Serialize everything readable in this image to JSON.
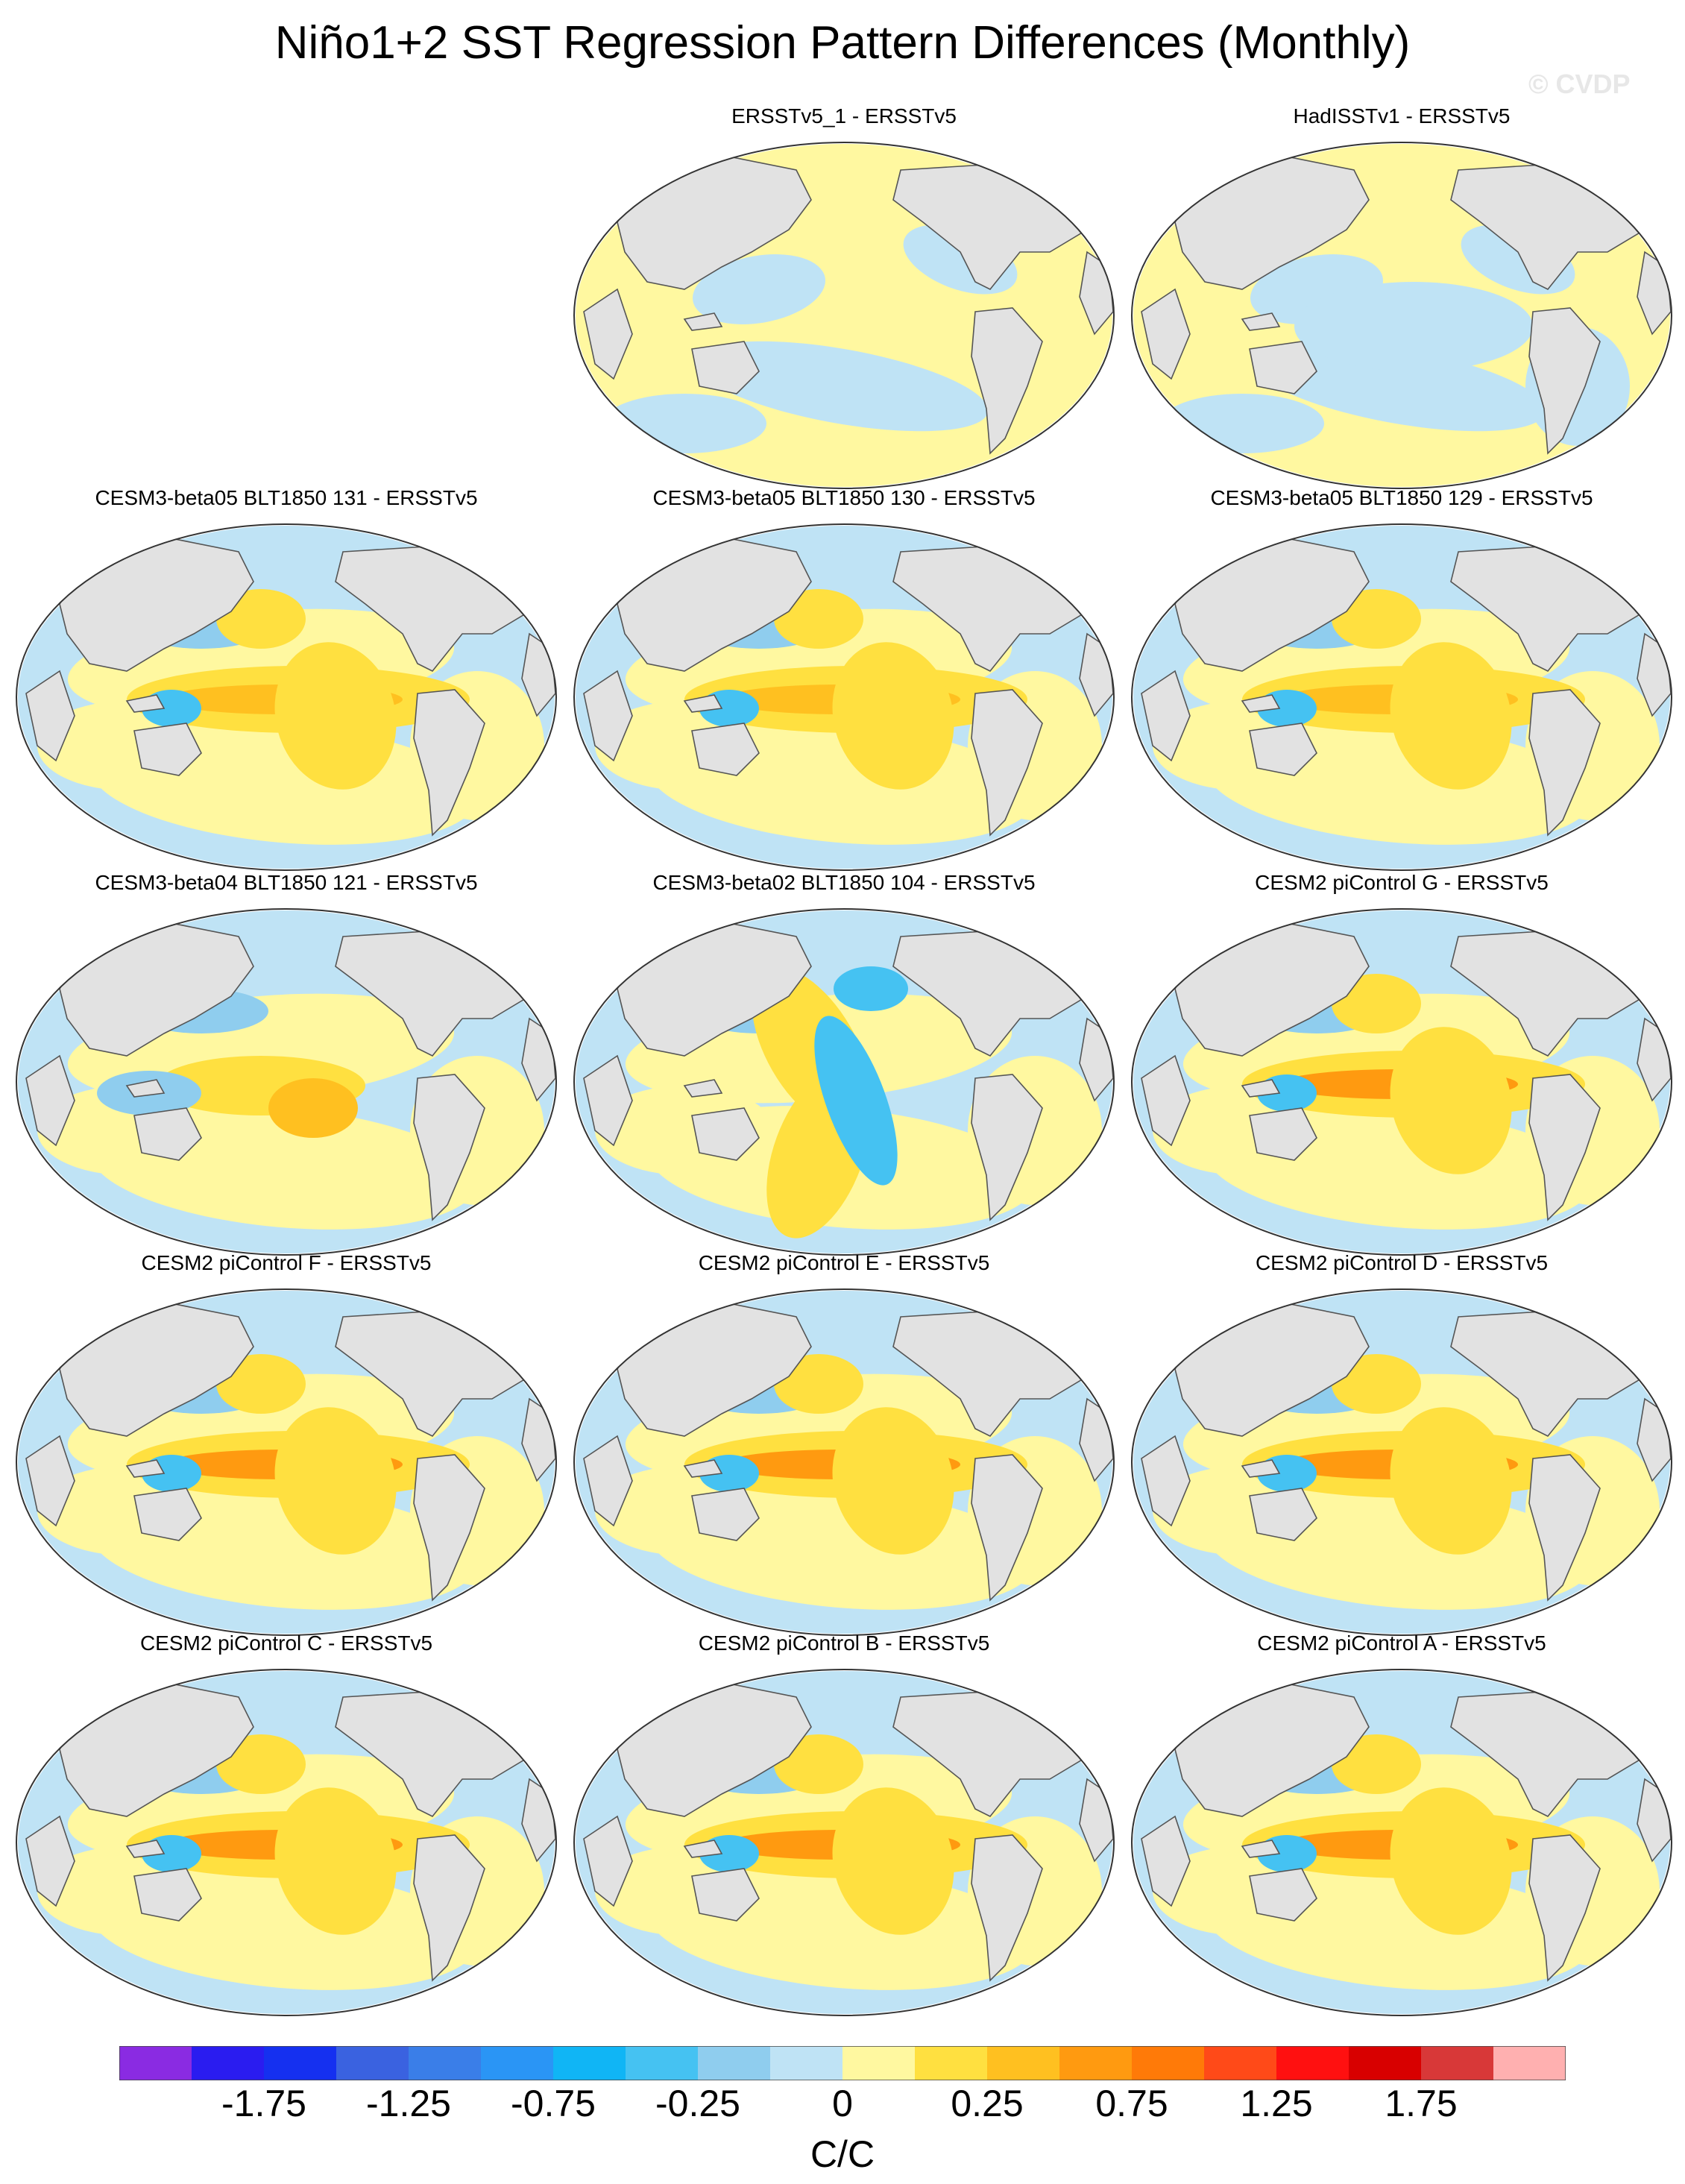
{
  "title": "Niño1+2 SST Regression Pattern Differences (Monthly)",
  "watermark": "© CVDP",
  "panels": [
    {
      "title": "ERSSTv5_1 - ERSSTv5",
      "pattern": "obs-weak"
    },
    {
      "title": "HadISSTv1 - ERSSTv5",
      "pattern": "obs-mixed"
    },
    {
      "title": "CESM3-beta05 BLT1850 131 - ERSSTv5",
      "pattern": "model-tongue"
    },
    {
      "title": "CESM3-beta05 BLT1850 130 - ERSSTv5",
      "pattern": "model-tongue"
    },
    {
      "title": "CESM3-beta05 BLT1850 129 - ERSSTv5",
      "pattern": "model-tongue"
    },
    {
      "title": "CESM3-beta04 BLT1850 121 - ERSSTv5",
      "pattern": "model-mixed"
    },
    {
      "title": "CESM3-beta02 BLT1850 104 - ERSSTv5",
      "pattern": "model-wave"
    },
    {
      "title": "CESM2 piControl G - ERSSTv5",
      "pattern": "model-strong"
    },
    {
      "title": "CESM2 piControl F - ERSSTv5",
      "pattern": "model-strong"
    },
    {
      "title": "CESM2 piControl E - ERSSTv5",
      "pattern": "model-strong"
    },
    {
      "title": "CESM2 piControl D - ERSSTv5",
      "pattern": "model-strong"
    },
    {
      "title": "CESM2 piControl C - ERSSTv5",
      "pattern": "model-strong"
    },
    {
      "title": "CESM2 piControl B - ERSSTv5",
      "pattern": "model-strong"
    },
    {
      "title": "CESM2 piControl A - ERSSTv5",
      "pattern": "model-strong"
    }
  ],
  "colorbar": {
    "colors": [
      "#8a2be2",
      "#2a1cf0",
      "#1530f0",
      "#3a62e0",
      "#3a7ee8",
      "#2a95f5",
      "#10b5f5",
      "#45c2f2",
      "#8fcdee",
      "#bfe3f5",
      "#fff8a0",
      "#ffe040",
      "#ffc020",
      "#ff9a10",
      "#ff7a08",
      "#ff4a18",
      "#ff1010",
      "#d80000",
      "#d83838",
      "#ffb0b0"
    ],
    "labels": [
      "-1.75",
      "-1.25",
      "-0.75",
      "-0.25",
      "0",
      "0.25",
      "0.75",
      "1.25",
      "1.75"
    ],
    "units": "C/C"
  }
}
